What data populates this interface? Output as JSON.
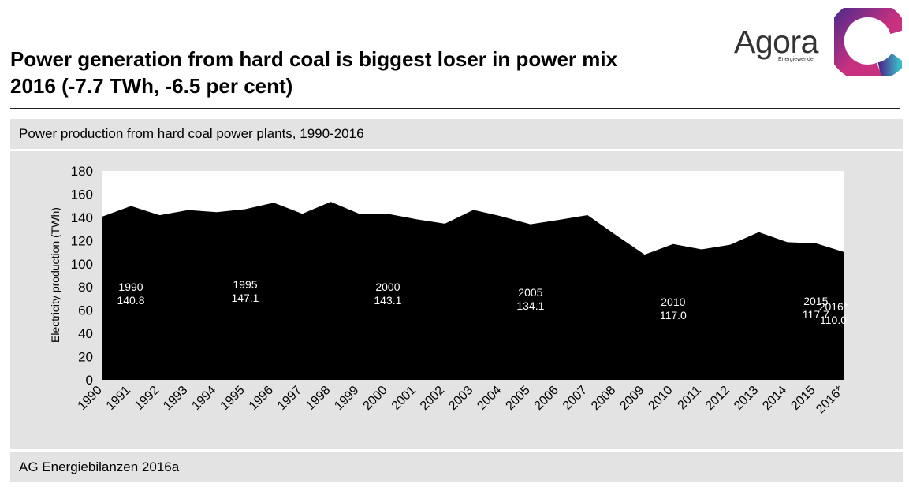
{
  "header": {
    "title_line1": "Power generation from hard coal is biggest loser in power mix",
    "title_line2": "2016 (-7.7 TWh, -6.5 per cent)"
  },
  "logo": {
    "word": "Agora",
    "sub": "Energiewende",
    "colors": [
      "#4d2a8c",
      "#c8317f",
      "#3bb8c8"
    ]
  },
  "panel": {
    "subtitle": "Power production from hard coal power plants, 1990-2016",
    "source": "AG Energiebilanzen 2016a"
  },
  "chart_data": {
    "type": "area",
    "title": "Power production from hard coal power plants, 1990-2016",
    "ylabel": "Electricity production (TWh)",
    "xlabel": "",
    "ylim": [
      0,
      180
    ],
    "yticks": [
      0,
      20,
      40,
      60,
      80,
      100,
      120,
      140,
      160,
      180
    ],
    "categories": [
      "1990",
      "1991",
      "1992",
      "1993",
      "1994",
      "1995",
      "1996",
      "1997",
      "1998",
      "1999",
      "2000",
      "2001",
      "2002",
      "2003",
      "2004",
      "2005",
      "2006",
      "2007",
      "2008",
      "2009",
      "2010",
      "2011",
      "2012",
      "2013",
      "2014",
      "2015",
      "2016*"
    ],
    "values": [
      140.8,
      149.8,
      141.9,
      146.3,
      144.5,
      147.1,
      152.7,
      143.1,
      153.4,
      143.1,
      143.1,
      138.4,
      134.6,
      146.5,
      140.8,
      134.1,
      137.9,
      142.0,
      124.6,
      107.9,
      117.0,
      112.4,
      116.4,
      127.3,
      118.6,
      117.7,
      110.0
    ],
    "fill_color": "#000000",
    "grid": false,
    "annotations": [
      {
        "year": "1990",
        "value": "140.8"
      },
      {
        "year": "1995",
        "value": "147.1"
      },
      {
        "year": "2000",
        "value": "143.1"
      },
      {
        "year": "2005",
        "value": "134.1"
      },
      {
        "year": "2010",
        "value": "117.0"
      },
      {
        "year": "2015",
        "value": "117.7"
      },
      {
        "year": "2016*",
        "value": "110.0"
      }
    ]
  }
}
